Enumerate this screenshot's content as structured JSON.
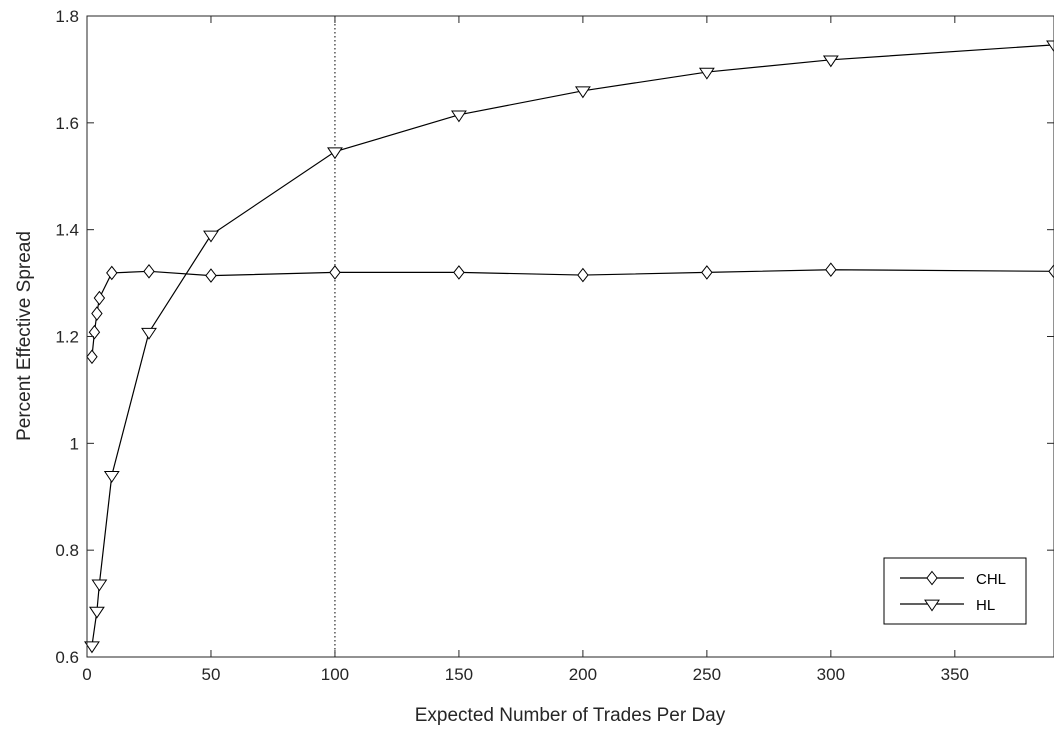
{
  "chart_data": {
    "type": "line",
    "title": "",
    "xlabel": "Expected Number of Trades Per Day",
    "ylabel": "Percent Effective Spread",
    "xlim": [
      0,
      390
    ],
    "ylim": [
      0.6,
      1.8
    ],
    "xticks": [
      0,
      50,
      100,
      150,
      200,
      250,
      300,
      350
    ],
    "yticks": [
      0.6,
      0.8,
      1.0,
      1.2,
      1.4,
      1.6,
      1.8
    ],
    "xtick_labels": [
      "0",
      "50",
      "100",
      "150",
      "200",
      "250",
      "300",
      "350"
    ],
    "ytick_labels": [
      "0.6",
      "0.8",
      "1",
      "1.2",
      "1.4",
      "1.6",
      "1.8"
    ],
    "grid": false,
    "reference_line": {
      "x": 100,
      "style": "dotted"
    },
    "legend_position": "bottom-right",
    "series": [
      {
        "name": "CHL",
        "marker": "diamond",
        "color": "#000000",
        "x": [
          2,
          3,
          4,
          5,
          10,
          25,
          50,
          100,
          150,
          200,
          250,
          300,
          390
        ],
        "y": [
          1.162,
          1.208,
          1.243,
          1.272,
          1.319,
          1.322,
          1.314,
          1.32,
          1.32,
          1.315,
          1.32,
          1.325,
          1.322
        ]
      },
      {
        "name": "HL",
        "marker": "triangle-down",
        "color": "#000000",
        "x": [
          2,
          4,
          5,
          10,
          25,
          50,
          100,
          150,
          200,
          250,
          300,
          390
        ],
        "y": [
          0.621,
          0.686,
          0.737,
          0.94,
          1.208,
          1.39,
          1.546,
          1.615,
          1.66,
          1.695,
          1.718,
          1.746
        ]
      }
    ]
  }
}
